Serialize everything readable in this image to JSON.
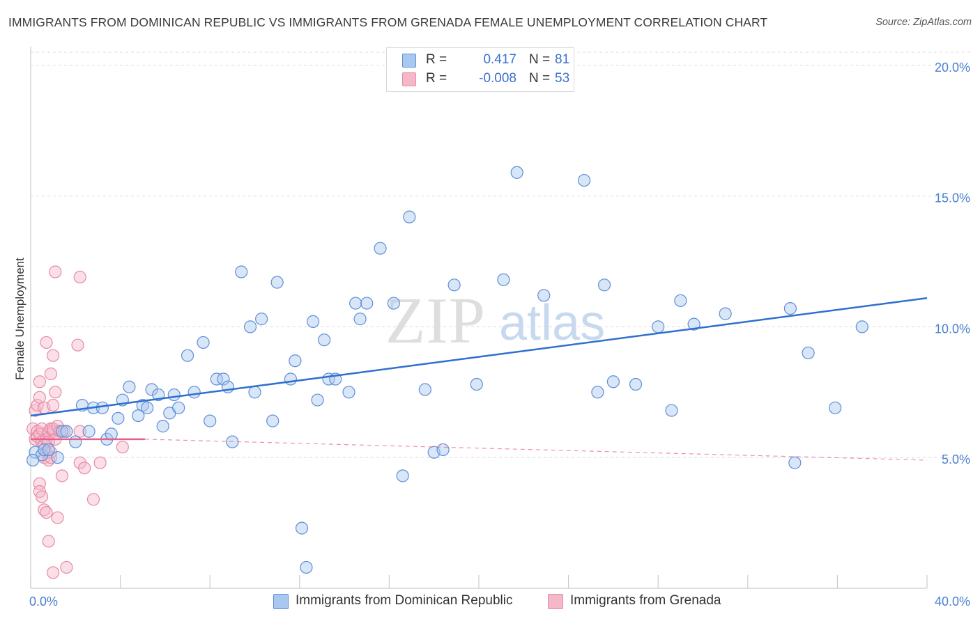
{
  "title": "IMMIGRANTS FROM DOMINICAN REPUBLIC VS IMMIGRANTS FROM GRENADA FEMALE UNEMPLOYMENT CORRELATION CHART",
  "source": "Source: ZipAtlas.com",
  "watermark": {
    "part1": "ZIP",
    "part2": "atlas"
  },
  "colors": {
    "blue_fill": "#a9c8f0",
    "blue_stroke": "#5d8fd6",
    "blue_line": "#2f6fd0",
    "pink_fill": "#f5b8c9",
    "pink_stroke": "#e68aa6",
    "pink_line": "#e8608a",
    "tick_color": "#4a7fd0",
    "grid": "#dcdcdc"
  },
  "legend": {
    "rows": [
      {
        "r_label": "R =",
        "r_value": "0.417",
        "n_label": "N =",
        "n_value": "81",
        "color": "#a9c8f0",
        "border": "#5d8fd6"
      },
      {
        "r_label": "R =",
        "r_value": "-0.008",
        "n_label": "N =",
        "n_value": "53",
        "color": "#f5b8c9",
        "border": "#e68aa6"
      }
    ]
  },
  "bottom_legend": [
    {
      "label": "Immigrants from Dominican Republic",
      "color": "#a9c8f0",
      "border": "#5d8fd6"
    },
    {
      "label": "Immigrants from Grenada",
      "color": "#f5b8c9",
      "border": "#e68aa6"
    }
  ],
  "chart_data": {
    "type": "scatter",
    "title": "IMMIGRANTS FROM DOMINICAN REPUBLIC VS IMMIGRANTS FROM GRENADA FEMALE UNEMPLOYMENT CORRELATION CHART",
    "xlabel": "",
    "ylabel": "Female Unemployment",
    "xlim": [
      0,
      40
    ],
    "ylim": [
      0,
      20.5
    ],
    "x_tick_labels": [
      {
        "value": 0,
        "label": "0.0%"
      },
      {
        "value": 40,
        "label": "40.0%"
      }
    ],
    "x_minor_ticks": [
      0,
      4,
      8,
      12,
      16,
      20,
      24,
      28,
      32,
      36,
      40
    ],
    "y_ticks": [
      {
        "value": 5,
        "label": "5.0%"
      },
      {
        "value": 10,
        "label": "10.0%"
      },
      {
        "value": 15,
        "label": "15.0%"
      },
      {
        "value": 20,
        "label": "20.0%"
      }
    ],
    "grid": true,
    "series": [
      {
        "name": "Immigrants from Dominican Republic",
        "r": 0.417,
        "n": 81,
        "trend": {
          "x": [
            0,
            40
          ],
          "y": [
            6.6,
            11.1
          ],
          "style": "solid"
        },
        "points": [
          [
            0.2,
            5.2
          ],
          [
            0.5,
            5.1
          ],
          [
            0.6,
            5.3
          ],
          [
            0.8,
            5.3
          ],
          [
            1.2,
            5.0
          ],
          [
            1.4,
            6.0
          ],
          [
            1.6,
            6.0
          ],
          [
            2.0,
            5.6
          ],
          [
            2.3,
            7.0
          ],
          [
            2.6,
            6.0
          ],
          [
            2.8,
            6.9
          ],
          [
            3.2,
            6.9
          ],
          [
            3.4,
            5.7
          ],
          [
            3.6,
            5.9
          ],
          [
            3.9,
            6.5
          ],
          [
            4.1,
            7.2
          ],
          [
            4.4,
            7.7
          ],
          [
            4.8,
            6.6
          ],
          [
            5.0,
            7.0
          ],
          [
            5.2,
            6.9
          ],
          [
            5.4,
            7.6
          ],
          [
            5.7,
            7.4
          ],
          [
            5.9,
            6.2
          ],
          [
            6.2,
            6.7
          ],
          [
            6.4,
            7.4
          ],
          [
            6.6,
            6.9
          ],
          [
            7.0,
            8.9
          ],
          [
            7.3,
            7.5
          ],
          [
            7.7,
            9.4
          ],
          [
            8.0,
            6.4
          ],
          [
            8.3,
            8.0
          ],
          [
            8.6,
            8.0
          ],
          [
            8.8,
            7.7
          ],
          [
            9.0,
            5.6
          ],
          [
            9.4,
            12.1
          ],
          [
            9.8,
            10.0
          ],
          [
            10.0,
            7.5
          ],
          [
            10.3,
            10.3
          ],
          [
            10.8,
            6.4
          ],
          [
            11.0,
            11.7
          ],
          [
            11.6,
            8.0
          ],
          [
            11.8,
            8.7
          ],
          [
            12.1,
            2.3
          ],
          [
            12.3,
            0.8
          ],
          [
            12.6,
            10.2
          ],
          [
            12.8,
            7.2
          ],
          [
            13.1,
            9.5
          ],
          [
            13.3,
            8.0
          ],
          [
            13.6,
            8.0
          ],
          [
            14.2,
            7.5
          ],
          [
            14.5,
            10.9
          ],
          [
            14.7,
            10.3
          ],
          [
            15.0,
            10.9
          ],
          [
            15.6,
            13.0
          ],
          [
            16.2,
            10.9
          ],
          [
            16.6,
            4.3
          ],
          [
            16.9,
            14.2
          ],
          [
            17.6,
            7.6
          ],
          [
            18.0,
            5.2
          ],
          [
            18.4,
            5.3
          ],
          [
            18.9,
            11.6
          ],
          [
            19.9,
            7.8
          ],
          [
            21.1,
            11.8
          ],
          [
            21.7,
            15.9
          ],
          [
            22.9,
            11.2
          ],
          [
            24.7,
            15.6
          ],
          [
            25.3,
            7.5
          ],
          [
            25.6,
            11.6
          ],
          [
            26.0,
            7.9
          ],
          [
            27.0,
            7.8
          ],
          [
            28.0,
            10.0
          ],
          [
            28.6,
            6.8
          ],
          [
            29.0,
            11.0
          ],
          [
            29.6,
            10.1
          ],
          [
            31.0,
            10.5
          ],
          [
            33.9,
            10.7
          ],
          [
            34.1,
            4.8
          ],
          [
            34.7,
            9.0
          ],
          [
            35.9,
            6.9
          ],
          [
            37.1,
            10.0
          ],
          [
            0.1,
            4.9
          ]
        ]
      },
      {
        "name": "Immigrants from Grenada",
        "r": -0.008,
        "n": 53,
        "trend": {
          "x": [
            0,
            5.1
          ],
          "y": [
            5.7,
            5.7
          ],
          "style": "solid",
          "extended_to": [
            40,
            4.9
          ],
          "extended_style": "dashed"
        },
        "points": [
          [
            0.1,
            6.1
          ],
          [
            0.2,
            6.8
          ],
          [
            0.2,
            5.7
          ],
          [
            0.3,
            6.0
          ],
          [
            0.3,
            5.8
          ],
          [
            0.3,
            7.0
          ],
          [
            0.4,
            7.9
          ],
          [
            0.4,
            7.3
          ],
          [
            0.4,
            4.0
          ],
          [
            0.4,
            3.7
          ],
          [
            0.4,
            5.9
          ],
          [
            0.5,
            6.1
          ],
          [
            0.5,
            5.6
          ],
          [
            0.5,
            3.5
          ],
          [
            0.6,
            5.0
          ],
          [
            0.6,
            5.5
          ],
          [
            0.6,
            3.0
          ],
          [
            0.6,
            6.9
          ],
          [
            0.7,
            9.4
          ],
          [
            0.7,
            5.2
          ],
          [
            0.7,
            5.7
          ],
          [
            0.7,
            2.9
          ],
          [
            0.8,
            5.9
          ],
          [
            0.8,
            4.9
          ],
          [
            0.8,
            6.0
          ],
          [
            0.8,
            1.8
          ],
          [
            0.8,
            5.6
          ],
          [
            0.9,
            6.1
          ],
          [
            0.9,
            5.2
          ],
          [
            0.9,
            8.2
          ],
          [
            0.9,
            5.0
          ],
          [
            1.0,
            8.9
          ],
          [
            1.0,
            6.0
          ],
          [
            1.0,
            7.0
          ],
          [
            1.0,
            6.1
          ],
          [
            1.0,
            0.6
          ],
          [
            1.1,
            5.7
          ],
          [
            1.1,
            7.5
          ],
          [
            1.1,
            12.1
          ],
          [
            1.2,
            6.2
          ],
          [
            1.2,
            2.7
          ],
          [
            1.3,
            6.0
          ],
          [
            1.4,
            4.3
          ],
          [
            1.5,
            6.0
          ],
          [
            1.6,
            0.8
          ],
          [
            2.1,
            9.3
          ],
          [
            2.2,
            11.9
          ],
          [
            2.2,
            6.0
          ],
          [
            2.2,
            4.8
          ],
          [
            2.4,
            4.6
          ],
          [
            2.8,
            3.4
          ],
          [
            3.1,
            4.8
          ],
          [
            4.1,
            5.4
          ]
        ]
      }
    ]
  }
}
